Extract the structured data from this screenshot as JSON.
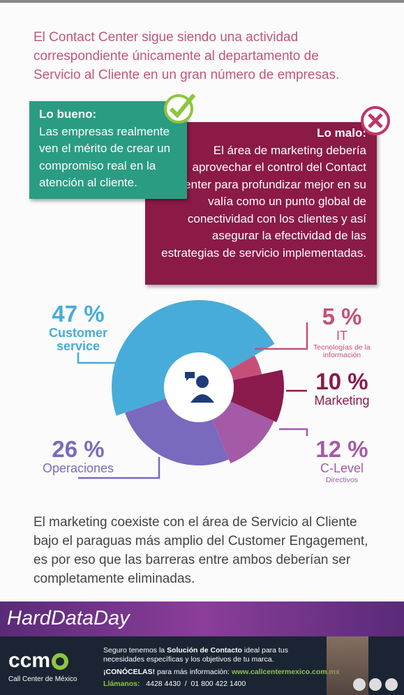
{
  "intro": "El Contact Center sigue siendo una actividad correspondiente únicamente al departamento de Servicio al Cliente en un gran número de empresas.",
  "good": {
    "title": "Lo bueno:",
    "text": "Las empresas realmente ven el mérito de crear un compromiso real en la atención al cliente."
  },
  "bad": {
    "title": "Lo malo:",
    "text": "El área de marketing debería aprovechar el control del Contact Center para profundizar mejor en su valía como un punto global de conectividad con los clientes y así asegurar la efectividad de las estrategias de servicio implementadas."
  },
  "chart_data": {
    "type": "pie",
    "donut": true,
    "categories": [
      "Customer service",
      "IT",
      "Marketing",
      "C-Level",
      "Operaciones"
    ],
    "descriptions": [
      null,
      "Tecnologías de la información",
      null,
      "Directivos",
      null
    ],
    "values": [
      47,
      5,
      10,
      12,
      26
    ],
    "value_labels": [
      "47 %",
      "5 %",
      "10 %",
      "12 %",
      "26 %"
    ],
    "colors": [
      "#47acd9",
      "#c64f79",
      "#8a1a4b",
      "#a45aa6",
      "#7b69bd"
    ]
  },
  "conclusion": "El marketing coexiste con el área de Servicio al Cliente bajo el paraguas más amplio del Customer Engagement, es por eso que las barreras entre ambos deberían ser completamente eliminadas.",
  "banner": "HardDataDay",
  "footer": {
    "logo": "ccm",
    "logo_sub": "Call Center de México",
    "message": [
      "Seguro tenemos la ",
      "Solución de Contacto",
      " ideal para tus necesidades específicas y los objetivos de tu marca."
    ],
    "cta": "¡CONÓCELAS!",
    "cta_text": "para más información:",
    "url": "www.callcentermexico.com.mx",
    "call": "Llámanos:",
    "phone1": "4428 4430",
    "sep": "/",
    "phone2": "01 800 422 1400"
  }
}
